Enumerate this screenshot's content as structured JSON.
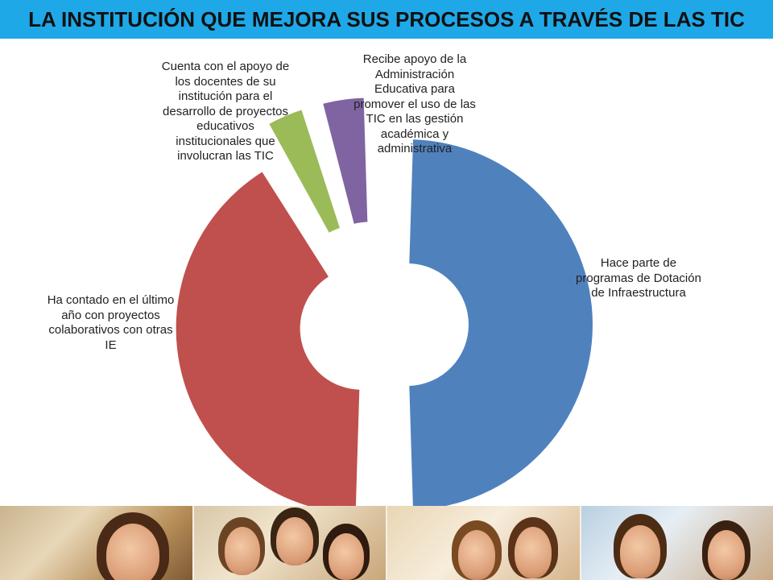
{
  "title": "LA INSTITUCIÓN QUE  MEJORA SUS PROCESOS A TRAVÉS DE LAS TIC",
  "colors": {
    "title_bar": "#1ea8e8",
    "series": [
      "#4f81bd",
      "#c0504d",
      "#9bbb59",
      "#8064a2"
    ]
  },
  "chart_data": {
    "type": "pie",
    "variant": "exploded-doughnut",
    "title": "",
    "slices": [
      {
        "label": "Hace parte de\nprogramas de Dotación\nde Infraestructura",
        "value": 50,
        "color": "#4f81bd"
      },
      {
        "label": "Ha contado en el último\naño con proyectos\ncolaborativos con otras\nIE",
        "value": 41.5,
        "color": "#c0504d"
      },
      {
        "label": "Cuenta con el apoyo de\nlos docentes de su\ninstitución para el\ndesarrollo de proyectos\neducativos\ninstitucionales que\ninvolucran las TIC",
        "value": 4,
        "color": "#9bbb59"
      },
      {
        "label": "Recibe apoyo de la\nAdministración\nEducativa para\npromover el uso de las\nTIC en las gestión\nacadémica y\nadministrativa",
        "value": 4.5,
        "color": "#8064a2"
      }
    ],
    "data_labels": "category-name",
    "legend": "none"
  },
  "photo_strip": {
    "panels": [
      "classroom",
      "students-group",
      "students-smiling",
      "child-reading"
    ]
  }
}
